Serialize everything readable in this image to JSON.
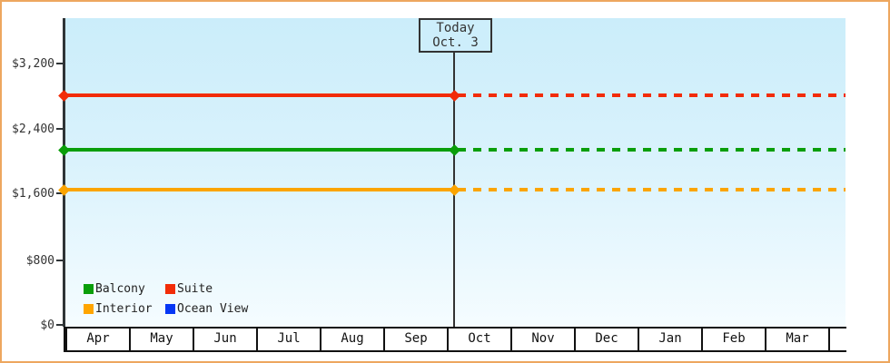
{
  "frame": {
    "border_color": "#eda75f"
  },
  "today_box": {
    "line1": "Today",
    "line2": "Oct. 3"
  },
  "y_axis": {
    "labels": [
      "$3,200",
      "$2,400",
      "$1,600",
      "$800",
      "$0"
    ]
  },
  "x_axis": {
    "months": [
      "Apr",
      "May",
      "Jun",
      "Jul",
      "Aug",
      "Sep",
      "Oct",
      "Nov",
      "Dec",
      "Jan",
      "Feb",
      "Mar"
    ]
  },
  "legend": {
    "items": [
      {
        "label": "Balcony",
        "color": "#0a9e0a"
      },
      {
        "label": "Suite",
        "color": "#f22c08"
      },
      {
        "label": "Interior",
        "color": "#ffa500"
      },
      {
        "label": "Ocean View",
        "color": "#0537f5"
      }
    ]
  },
  "chart_data": {
    "type": "line",
    "x_categories": [
      "Apr",
      "May",
      "Jun",
      "Jul",
      "Aug",
      "Sep",
      "Oct",
      "Nov",
      "Dec",
      "Jan",
      "Feb",
      "Mar"
    ],
    "today_marker": {
      "label": "Today",
      "date": "Oct. 3",
      "x_position": "start of Oct"
    },
    "yticks_labels": [
      "$0",
      "$800",
      "$1,600",
      "$2,400",
      "$3,200"
    ],
    "yticks_values": [
      0,
      800,
      1600,
      2400,
      3200
    ],
    "ylim": [
      0,
      3750
    ],
    "grid": false,
    "legend_position": "bottom-left inside plot",
    "plot_background": "light blue vertical gradient #cbedfa to #f5fcff",
    "series": [
      {
        "name": "Suite",
        "color": "#f22c08",
        "approx_value": 2810,
        "shape": "constant horizontal line Apr through Mar; solid with diamond endpoint markers up to Today (Oct. 3), dotted projection after"
      },
      {
        "name": "Balcony",
        "color": "#0a9e0a",
        "approx_value": 2150,
        "shape": "constant horizontal line Apr through Mar; solid with diamond endpoint markers up to Today (Oct. 3), dotted projection after"
      },
      {
        "name": "Interior",
        "color": "#fba400",
        "approx_value": 1660,
        "shape": "constant horizontal line Apr through Mar; solid with diamond endpoint markers up to Today (Oct. 3), dotted projection after"
      },
      {
        "name": "Ocean View",
        "color": "#0537f5",
        "approx_value": null,
        "shape": "listed in legend but no line plotted"
      }
    ]
  }
}
